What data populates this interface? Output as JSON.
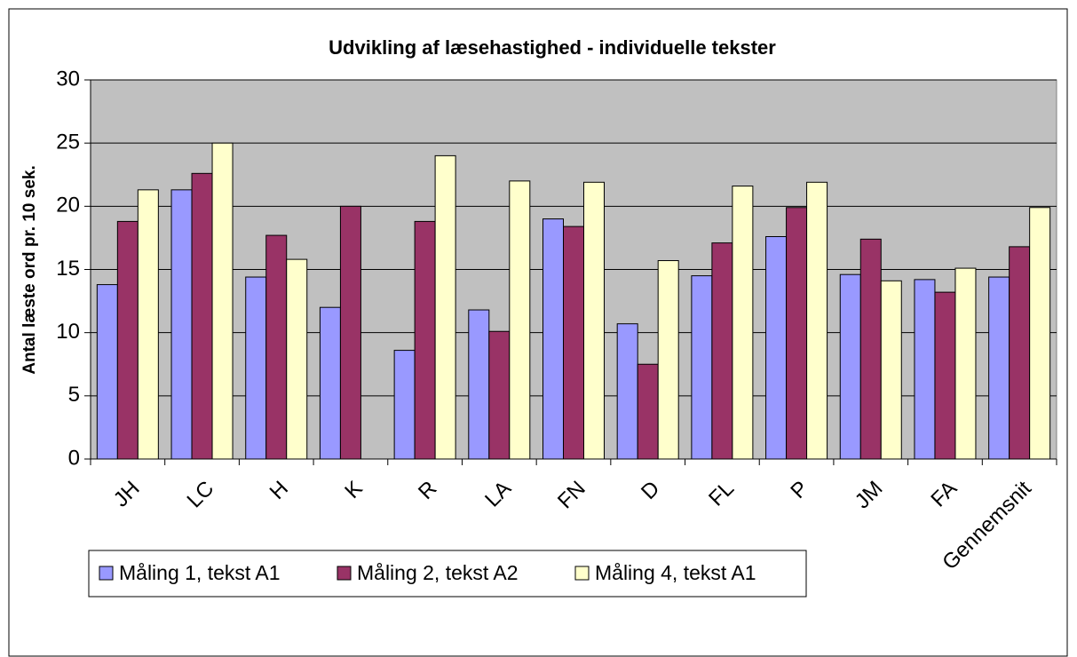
{
  "chart_data": {
    "type": "bar",
    "title": "Udvikling af læsehastighed - individuelle tekster",
    "y_label": "Antal læste ord pr. 10 sek.",
    "categories": [
      "JH",
      "LC",
      "H",
      "K",
      "R",
      "LA",
      "FN",
      "D",
      "FL",
      "P",
      "JM",
      "FA",
      "Gennemsnit"
    ],
    "series": [
      {
        "name": "Måling 1, tekst A1",
        "color": "#9999ff",
        "values": [
          13.8,
          21.3,
          14.4,
          12.0,
          8.6,
          11.8,
          19.0,
          10.7,
          14.5,
          17.6,
          14.6,
          14.2,
          14.4
        ]
      },
      {
        "name": "Måling 2, tekst A2",
        "color": "#993366",
        "values": [
          18.8,
          22.6,
          17.7,
          20.0,
          18.8,
          10.1,
          18.4,
          7.5,
          17.1,
          19.9,
          17.4,
          13.2,
          16.8
        ]
      },
      {
        "name": "Måling 4, tekst A1",
        "color": "#ffffcc",
        "values": [
          21.3,
          25.0,
          15.8,
          null,
          24.0,
          22.0,
          21.9,
          15.7,
          21.6,
          21.9,
          14.1,
          15.1,
          19.9
        ]
      }
    ],
    "ylim": [
      0,
      30
    ],
    "yticks": [
      0,
      5,
      10,
      15,
      20,
      25,
      30
    ],
    "grid": true
  }
}
